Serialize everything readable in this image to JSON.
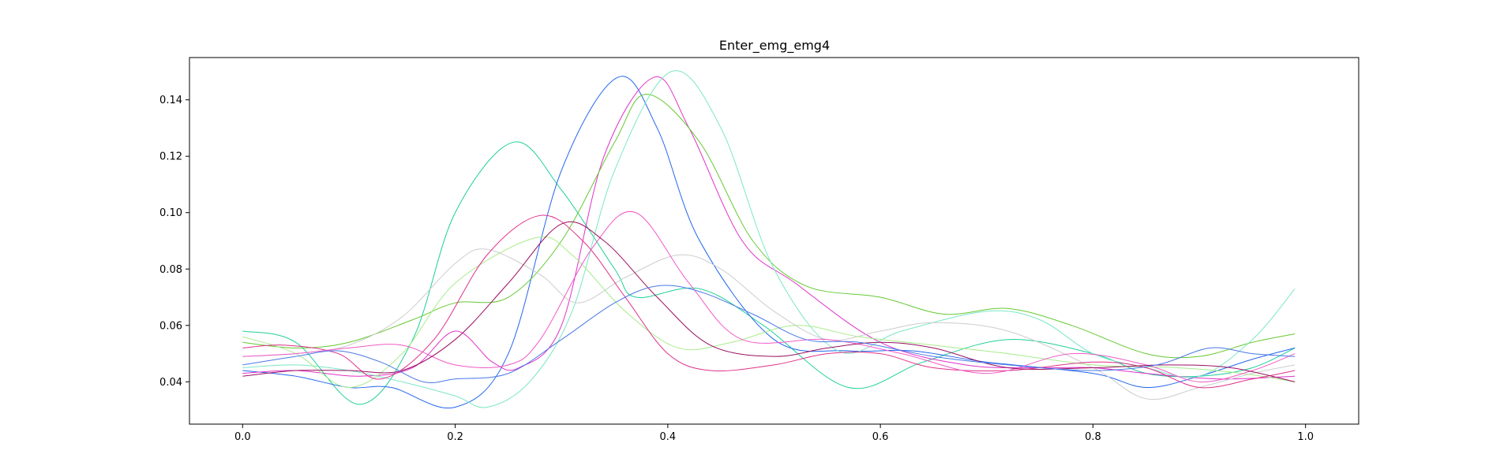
{
  "chart_data": {
    "type": "line",
    "title": "Enter_emg_emg4",
    "xlabel": "",
    "ylabel": "",
    "xlim": [
      -0.05,
      1.05
    ],
    "ylim": [
      0.025,
      0.155
    ],
    "xticks": [
      "0.0",
      "0.2",
      "0.4",
      "0.6",
      "0.8",
      "1.0"
    ],
    "yticks": [
      "0.04",
      "0.06",
      "0.08",
      "0.10",
      "0.12",
      "0.14"
    ],
    "grid": false,
    "legend": "none",
    "series": [
      {
        "color": "#1fcf9a",
        "points": [
          [
            0.0,
            0.058
          ],
          [
            0.05,
            0.054
          ],
          [
            0.11,
            0.032
          ],
          [
            0.16,
            0.055
          ],
          [
            0.2,
            0.1
          ],
          [
            0.255,
            0.125
          ],
          [
            0.3,
            0.108
          ],
          [
            0.35,
            0.08
          ],
          [
            0.37,
            0.07
          ],
          [
            0.43,
            0.073
          ],
          [
            0.49,
            0.06
          ],
          [
            0.57,
            0.038
          ],
          [
            0.64,
            0.047
          ],
          [
            0.72,
            0.055
          ],
          [
            0.8,
            0.05
          ],
          [
            0.85,
            0.043
          ],
          [
            0.9,
            0.042
          ],
          [
            0.95,
            0.045
          ],
          [
            0.99,
            0.052
          ]
        ]
      },
      {
        "color": "#2266ee",
        "points": [
          [
            0.0,
            0.044
          ],
          [
            0.05,
            0.042
          ],
          [
            0.1,
            0.038
          ],
          [
            0.14,
            0.038
          ],
          [
            0.2,
            0.031
          ],
          [
            0.25,
            0.05
          ],
          [
            0.3,
            0.115
          ],
          [
            0.353,
            0.148
          ],
          [
            0.39,
            0.13
          ],
          [
            0.43,
            0.09
          ],
          [
            0.5,
            0.055
          ],
          [
            0.57,
            0.051
          ],
          [
            0.63,
            0.051
          ],
          [
            0.7,
            0.047
          ],
          [
            0.8,
            0.043
          ],
          [
            0.85,
            0.038
          ],
          [
            0.9,
            0.042
          ],
          [
            0.95,
            0.048
          ],
          [
            0.99,
            0.052
          ]
        ]
      },
      {
        "color": "#e032c8",
        "points": [
          [
            0.0,
            0.043
          ],
          [
            0.05,
            0.044
          ],
          [
            0.11,
            0.042
          ],
          [
            0.16,
            0.045
          ],
          [
            0.2,
            0.058
          ],
          [
            0.235,
            0.047
          ],
          [
            0.26,
            0.045
          ],
          [
            0.3,
            0.06
          ],
          [
            0.34,
            0.12
          ],
          [
            0.387,
            0.148
          ],
          [
            0.42,
            0.13
          ],
          [
            0.47,
            0.09
          ],
          [
            0.52,
            0.075
          ],
          [
            0.6,
            0.054
          ],
          [
            0.68,
            0.046
          ],
          [
            0.75,
            0.045
          ],
          [
            0.8,
            0.045
          ],
          [
            0.85,
            0.043
          ],
          [
            0.92,
            0.041
          ],
          [
            0.99,
            0.042
          ]
        ]
      },
      {
        "color": "#66c833",
        "points": [
          [
            0.0,
            0.054
          ],
          [
            0.05,
            0.052
          ],
          [
            0.1,
            0.054
          ],
          [
            0.16,
            0.062
          ],
          [
            0.2,
            0.068
          ],
          [
            0.25,
            0.07
          ],
          [
            0.3,
            0.09
          ],
          [
            0.35,
            0.125
          ],
          [
            0.38,
            0.142
          ],
          [
            0.43,
            0.125
          ],
          [
            0.48,
            0.09
          ],
          [
            0.53,
            0.074
          ],
          [
            0.6,
            0.07
          ],
          [
            0.66,
            0.064
          ],
          [
            0.72,
            0.066
          ],
          [
            0.78,
            0.06
          ],
          [
            0.85,
            0.05
          ],
          [
            0.9,
            0.049
          ],
          [
            0.95,
            0.054
          ],
          [
            0.99,
            0.057
          ]
        ]
      },
      {
        "color": "#7be6c5",
        "points": [
          [
            0.0,
            0.045
          ],
          [
            0.05,
            0.046
          ],
          [
            0.1,
            0.044
          ],
          [
            0.15,
            0.04
          ],
          [
            0.2,
            0.035
          ],
          [
            0.23,
            0.031
          ],
          [
            0.27,
            0.04
          ],
          [
            0.31,
            0.065
          ],
          [
            0.35,
            0.115
          ],
          [
            0.403,
            0.15
          ],
          [
            0.45,
            0.13
          ],
          [
            0.5,
            0.08
          ],
          [
            0.56,
            0.051
          ],
          [
            0.62,
            0.058
          ],
          [
            0.7,
            0.065
          ],
          [
            0.75,
            0.062
          ],
          [
            0.8,
            0.05
          ],
          [
            0.85,
            0.045
          ],
          [
            0.9,
            0.042
          ],
          [
            0.95,
            0.055
          ],
          [
            0.99,
            0.073
          ]
        ]
      },
      {
        "color": "#cdcdcd",
        "points": [
          [
            0.0,
            0.049
          ],
          [
            0.05,
            0.05
          ],
          [
            0.1,
            0.053
          ],
          [
            0.15,
            0.063
          ],
          [
            0.2,
            0.082
          ],
          [
            0.23,
            0.087
          ],
          [
            0.28,
            0.078
          ],
          [
            0.315,
            0.068
          ],
          [
            0.36,
            0.077
          ],
          [
            0.41,
            0.085
          ],
          [
            0.45,
            0.08
          ],
          [
            0.5,
            0.065
          ],
          [
            0.55,
            0.055
          ],
          [
            0.6,
            0.058
          ],
          [
            0.65,
            0.061
          ],
          [
            0.72,
            0.058
          ],
          [
            0.8,
            0.045
          ],
          [
            0.85,
            0.034
          ],
          [
            0.9,
            0.038
          ],
          [
            0.95,
            0.043
          ],
          [
            0.99,
            0.046
          ]
        ]
      },
      {
        "color": "#a8ec8c",
        "points": [
          [
            0.0,
            0.056
          ],
          [
            0.05,
            0.05
          ],
          [
            0.1,
            0.038
          ],
          [
            0.15,
            0.05
          ],
          [
            0.2,
            0.075
          ],
          [
            0.275,
            0.091
          ],
          [
            0.31,
            0.085
          ],
          [
            0.36,
            0.065
          ],
          [
            0.41,
            0.052
          ],
          [
            0.46,
            0.054
          ],
          [
            0.52,
            0.06
          ],
          [
            0.58,
            0.056
          ],
          [
            0.65,
            0.053
          ],
          [
            0.72,
            0.05
          ],
          [
            0.8,
            0.046
          ],
          [
            0.88,
            0.045
          ],
          [
            0.94,
            0.043
          ],
          [
            0.99,
            0.04
          ]
        ]
      },
      {
        "color": "#e0308a",
        "points": [
          [
            0.0,
            0.052
          ],
          [
            0.04,
            0.053
          ],
          [
            0.09,
            0.05
          ],
          [
            0.13,
            0.041
          ],
          [
            0.18,
            0.055
          ],
          [
            0.23,
            0.085
          ],
          [
            0.28,
            0.099
          ],
          [
            0.32,
            0.09
          ],
          [
            0.36,
            0.07
          ],
          [
            0.4,
            0.05
          ],
          [
            0.44,
            0.044
          ],
          [
            0.5,
            0.046
          ],
          [
            0.55,
            0.05
          ],
          [
            0.6,
            0.05
          ],
          [
            0.65,
            0.045
          ],
          [
            0.72,
            0.044
          ],
          [
            0.8,
            0.047
          ],
          [
            0.85,
            0.045
          ],
          [
            0.9,
            0.038
          ],
          [
            0.95,
            0.041
          ],
          [
            0.99,
            0.044
          ]
        ]
      },
      {
        "color": "#f05ac8",
        "points": [
          [
            0.0,
            0.049
          ],
          [
            0.05,
            0.05
          ],
          [
            0.1,
            0.052
          ],
          [
            0.15,
            0.053
          ],
          [
            0.2,
            0.046
          ],
          [
            0.25,
            0.046
          ],
          [
            0.28,
            0.055
          ],
          [
            0.33,
            0.088
          ],
          [
            0.37,
            0.1
          ],
          [
            0.42,
            0.075
          ],
          [
            0.47,
            0.055
          ],
          [
            0.55,
            0.055
          ],
          [
            0.62,
            0.05
          ],
          [
            0.7,
            0.043
          ],
          [
            0.78,
            0.05
          ],
          [
            0.85,
            0.046
          ],
          [
            0.9,
            0.04
          ],
          [
            0.95,
            0.044
          ],
          [
            0.99,
            0.05
          ]
        ]
      },
      {
        "color": "#9a1060",
        "points": [
          [
            0.0,
            0.042
          ],
          [
            0.05,
            0.044
          ],
          [
            0.1,
            0.044
          ],
          [
            0.15,
            0.044
          ],
          [
            0.2,
            0.055
          ],
          [
            0.25,
            0.075
          ],
          [
            0.3,
            0.096
          ],
          [
            0.34,
            0.09
          ],
          [
            0.39,
            0.07
          ],
          [
            0.44,
            0.053
          ],
          [
            0.5,
            0.049
          ],
          [
            0.55,
            0.052
          ],
          [
            0.6,
            0.054
          ],
          [
            0.65,
            0.052
          ],
          [
            0.72,
            0.045
          ],
          [
            0.8,
            0.045
          ],
          [
            0.87,
            0.046
          ],
          [
            0.93,
            0.045
          ],
          [
            0.99,
            0.04
          ]
        ]
      },
      {
        "color": "#4a78e8",
        "points": [
          [
            0.0,
            0.046
          ],
          [
            0.05,
            0.049
          ],
          [
            0.09,
            0.051
          ],
          [
            0.13,
            0.047
          ],
          [
            0.17,
            0.04
          ],
          [
            0.2,
            0.041
          ],
          [
            0.25,
            0.043
          ],
          [
            0.3,
            0.055
          ],
          [
            0.35,
            0.068
          ],
          [
            0.39,
            0.074
          ],
          [
            0.43,
            0.072
          ],
          [
            0.48,
            0.064
          ],
          [
            0.53,
            0.055
          ],
          [
            0.58,
            0.054
          ],
          [
            0.65,
            0.049
          ],
          [
            0.72,
            0.046
          ],
          [
            0.8,
            0.044
          ],
          [
            0.86,
            0.046
          ],
          [
            0.91,
            0.052
          ],
          [
            0.95,
            0.05
          ],
          [
            0.99,
            0.049
          ]
        ]
      }
    ]
  }
}
